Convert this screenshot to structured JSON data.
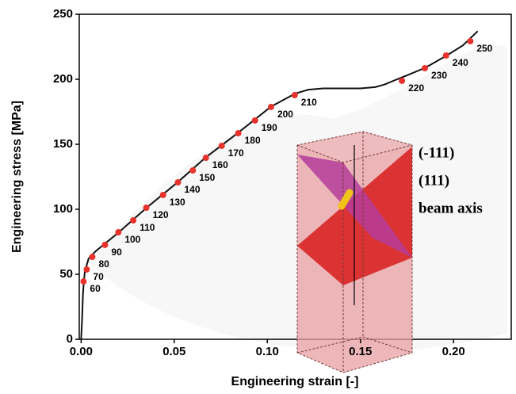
{
  "chart_data": {
    "type": "line",
    "x_label": "Engineering strain [-]",
    "y_label": "Engineering stress [MPa]",
    "xlim": [
      -0.001,
      0.231
    ],
    "ylim": [
      0,
      250
    ],
    "xticks": [
      {
        "value": 0,
        "label": "0.00"
      },
      {
        "value": 0.05,
        "label": "0.05"
      },
      {
        "value": 0.1,
        "label": "0.10"
      },
      {
        "value": 0.15,
        "label": "0.15"
      },
      {
        "value": 0.2,
        "label": "0.20"
      }
    ],
    "yticks": [
      0,
      50,
      100,
      150,
      200,
      250
    ],
    "series": [
      {
        "color": "#111111",
        "x": [
          0,
          0.0005,
          0.001,
          0.0015,
          0.002,
          0.004,
          0.008,
          0.02,
          0.035,
          0.052,
          0.067,
          0.084,
          0.102,
          0.115,
          0.122,
          0.13,
          0.14,
          0.15,
          0.158,
          0.163,
          0.168,
          0.175,
          0.185,
          0.196,
          0.205,
          0.213
        ],
        "values": [
          0,
          15,
          35,
          45,
          52,
          62,
          68,
          82,
          101,
          121,
          140,
          158.5,
          179,
          189,
          192,
          193,
          193,
          193,
          194,
          196,
          199,
          203,
          209,
          218,
          226,
          237
        ]
      },
      {
        "color": "#e8322c",
        "x": [
          0.0013,
          0.003,
          0.006,
          0.0128,
          0.02,
          0.028,
          0.035,
          0.044,
          0.052,
          0.06,
          0.067,
          0.0755,
          0.0844,
          0.0934,
          0.102,
          0.1147,
          0.1723,
          0.1846,
          0.196,
          0.209
        ],
        "values": [
          44.5,
          53.7,
          63.4,
          72.6,
          82.3,
          91.5,
          101.2,
          111,
          120.7,
          129.9,
          139.6,
          148.8,
          158.5,
          168.3,
          178.7,
          187.8,
          198.8,
          208.5,
          218.3,
          229.3
        ],
        "point_labels": [
          60,
          70,
          80,
          90,
          100,
          110,
          120,
          130,
          140,
          150,
          160,
          170,
          180,
          190,
          200,
          210,
          220,
          230,
          240,
          250
        ]
      }
    ],
    "inset_legend": [
      {
        "label": "(-111)",
        "color": "#e0201c"
      },
      {
        "label": "(111)",
        "color": "#b53d9a"
      },
      {
        "label": "beam axis",
        "color": "#f0c419"
      }
    ]
  }
}
